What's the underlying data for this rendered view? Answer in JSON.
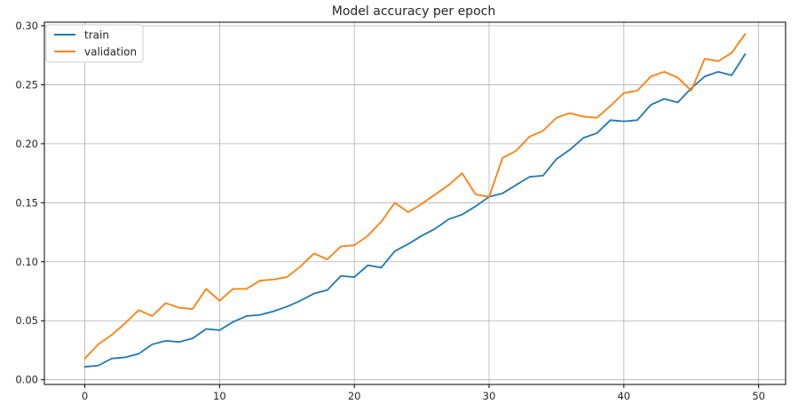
{
  "chart_data": {
    "type": "line",
    "title": "Model accuracy per epoch",
    "xlabel": "",
    "ylabel": "",
    "xlim": [
      -3,
      52
    ],
    "ylim": [
      -0.004,
      0.303
    ],
    "xticks": [
      0,
      10,
      20,
      30,
      40,
      50
    ],
    "yticks": [
      0.0,
      0.05,
      0.1,
      0.15,
      0.2,
      0.25,
      0.3
    ],
    "ytick_labels": [
      "0.00",
      "0.05",
      "0.10",
      "0.15",
      "0.20",
      "0.25",
      "0.30"
    ],
    "grid": true,
    "legend_position": "top-left",
    "x": [
      0,
      1,
      2,
      3,
      4,
      5,
      6,
      7,
      8,
      9,
      10,
      11,
      12,
      13,
      14,
      15,
      16,
      17,
      18,
      19,
      20,
      21,
      22,
      23,
      24,
      25,
      26,
      27,
      28,
      29,
      30,
      31,
      32,
      33,
      34,
      35,
      36,
      37,
      38,
      39,
      40,
      41,
      42,
      43,
      44,
      45,
      46,
      47,
      48,
      49
    ],
    "series": [
      {
        "name": "train",
        "color": "#1f77b4",
        "values": [
          0.011,
          0.012,
          0.018,
          0.019,
          0.022,
          0.03,
          0.033,
          0.032,
          0.035,
          0.043,
          0.042,
          0.049,
          0.054,
          0.055,
          0.058,
          0.062,
          0.067,
          0.073,
          0.076,
          0.088,
          0.087,
          0.097,
          0.095,
          0.109,
          0.115,
          0.122,
          0.128,
          0.136,
          0.14,
          0.147,
          0.155,
          0.158,
          0.165,
          0.172,
          0.173,
          0.187,
          0.195,
          0.205,
          0.209,
          0.22,
          0.219,
          0.22,
          0.233,
          0.238,
          0.235,
          0.247,
          0.257,
          0.261,
          0.258,
          0.276
        ]
      },
      {
        "name": "validation",
        "color": "#ff7f0e",
        "values": [
          0.018,
          0.03,
          0.038,
          0.048,
          0.059,
          0.054,
          0.065,
          0.061,
          0.06,
          0.077,
          0.067,
          0.077,
          0.077,
          0.084,
          0.085,
          0.087,
          0.096,
          0.107,
          0.102,
          0.113,
          0.114,
          0.122,
          0.134,
          0.15,
          0.142,
          0.149,
          0.157,
          0.165,
          0.175,
          0.157,
          0.155,
          0.188,
          0.194,
          0.206,
          0.211,
          0.222,
          0.226,
          0.223,
          0.222,
          0.232,
          0.243,
          0.245,
          0.257,
          0.261,
          0.256,
          0.245,
          0.272,
          0.27,
          0.277,
          0.293
        ]
      }
    ]
  }
}
